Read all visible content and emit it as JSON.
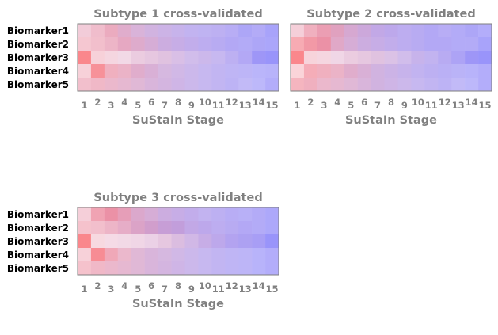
{
  "chart_data": [
    {
      "type": "heatmap",
      "title": "Subtype 1 cross-validated",
      "xlabel": "SuStaIn Stage",
      "x_categories": [
        "1",
        "2",
        "3",
        "4",
        "5",
        "6",
        "7",
        "8",
        "9",
        "10",
        "11",
        "12",
        "13",
        "14",
        "15"
      ],
      "y_categories": [
        "Biomarker1",
        "Biomarker2",
        "Biomarker3",
        "Biomarker4",
        "Biomarker5"
      ],
      "value_encoding": "each cell is [red_probability, blue_probability] blended on white",
      "values": [
        [
          [
            0.15,
            0.05
          ],
          [
            0.2,
            0.06
          ],
          [
            0.25,
            0.08
          ],
          [
            0.2,
            0.12
          ],
          [
            0.15,
            0.15
          ],
          [
            0.12,
            0.18
          ],
          [
            0.1,
            0.2
          ],
          [
            0.08,
            0.22
          ],
          [
            0.06,
            0.24
          ],
          [
            0.05,
            0.25
          ],
          [
            0.05,
            0.26
          ],
          [
            0.04,
            0.28
          ],
          [
            0.03,
            0.32
          ],
          [
            0.03,
            0.3
          ],
          [
            0.02,
            0.34
          ]
        ],
        [
          [
            0.18,
            0.04
          ],
          [
            0.2,
            0.05
          ],
          [
            0.22,
            0.07
          ],
          [
            0.24,
            0.1
          ],
          [
            0.2,
            0.13
          ],
          [
            0.16,
            0.16
          ],
          [
            0.12,
            0.2
          ],
          [
            0.1,
            0.22
          ],
          [
            0.08,
            0.24
          ],
          [
            0.06,
            0.26
          ],
          [
            0.05,
            0.28
          ],
          [
            0.04,
            0.3
          ],
          [
            0.03,
            0.3
          ],
          [
            0.03,
            0.32
          ],
          [
            0.02,
            0.33
          ]
        ],
        [
          [
            0.45,
            0.02
          ],
          [
            0.15,
            0.03
          ],
          [
            0.12,
            0.04
          ],
          [
            0.1,
            0.05
          ],
          [
            0.12,
            0.08
          ],
          [
            0.12,
            0.1
          ],
          [
            0.12,
            0.12
          ],
          [
            0.1,
            0.15
          ],
          [
            0.08,
            0.18
          ],
          [
            0.08,
            0.2
          ],
          [
            0.06,
            0.22
          ],
          [
            0.05,
            0.26
          ],
          [
            0.04,
            0.3
          ],
          [
            0.03,
            0.38
          ],
          [
            0.02,
            0.4
          ]
        ],
        [
          [
            0.15,
            0.03
          ],
          [
            0.4,
            0.03
          ],
          [
            0.25,
            0.06
          ],
          [
            0.22,
            0.08
          ],
          [
            0.2,
            0.12
          ],
          [
            0.16,
            0.15
          ],
          [
            0.12,
            0.16
          ],
          [
            0.1,
            0.18
          ],
          [
            0.08,
            0.2
          ],
          [
            0.06,
            0.22
          ],
          [
            0.05,
            0.24
          ],
          [
            0.04,
            0.25
          ],
          [
            0.03,
            0.26
          ],
          [
            0.02,
            0.27
          ],
          [
            0.02,
            0.28
          ]
        ],
        [
          [
            0.2,
            0.05
          ],
          [
            0.22,
            0.06
          ],
          [
            0.2,
            0.08
          ],
          [
            0.18,
            0.1
          ],
          [
            0.16,
            0.12
          ],
          [
            0.14,
            0.15
          ],
          [
            0.12,
            0.17
          ],
          [
            0.1,
            0.19
          ],
          [
            0.08,
            0.2
          ],
          [
            0.06,
            0.22
          ],
          [
            0.05,
            0.24
          ],
          [
            0.04,
            0.26
          ],
          [
            0.03,
            0.24
          ],
          [
            0.02,
            0.26
          ],
          [
            0.02,
            0.3
          ]
        ]
      ]
    },
    {
      "type": "heatmap",
      "title": "Subtype 2 cross-validated",
      "xlabel": "SuStaIn Stage",
      "x_categories": [
        "1",
        "2",
        "3",
        "4",
        "5",
        "6",
        "7",
        "8",
        "9",
        "10",
        "11",
        "12",
        "13",
        "14",
        "15"
      ],
      "y_categories": [
        "Biomarker1",
        "Biomarker2",
        "Biomarker3",
        "Biomarker4",
        "Biomarker5"
      ],
      "value_encoding": "each cell is [red_probability, blue_probability] blended on white",
      "values": [
        [
          [
            0.15,
            0.04
          ],
          [
            0.25,
            0.06
          ],
          [
            0.3,
            0.08
          ],
          [
            0.25,
            0.12
          ],
          [
            0.18,
            0.16
          ],
          [
            0.14,
            0.2
          ],
          [
            0.1,
            0.24
          ],
          [
            0.08,
            0.26
          ],
          [
            0.06,
            0.26
          ],
          [
            0.05,
            0.28
          ],
          [
            0.04,
            0.3
          ],
          [
            0.04,
            0.28
          ],
          [
            0.03,
            0.3
          ],
          [
            0.03,
            0.32
          ],
          [
            0.02,
            0.3
          ]
        ],
        [
          [
            0.3,
            0.03
          ],
          [
            0.35,
            0.05
          ],
          [
            0.35,
            0.08
          ],
          [
            0.22,
            0.12
          ],
          [
            0.16,
            0.16
          ],
          [
            0.12,
            0.2
          ],
          [
            0.1,
            0.22
          ],
          [
            0.08,
            0.24
          ],
          [
            0.06,
            0.26
          ],
          [
            0.05,
            0.28
          ],
          [
            0.04,
            0.3
          ],
          [
            0.04,
            0.3
          ],
          [
            0.03,
            0.3
          ],
          [
            0.03,
            0.3
          ],
          [
            0.02,
            0.34
          ]
        ],
        [
          [
            0.45,
            0.02
          ],
          [
            0.14,
            0.03
          ],
          [
            0.12,
            0.04
          ],
          [
            0.1,
            0.06
          ],
          [
            0.12,
            0.08
          ],
          [
            0.12,
            0.1
          ],
          [
            0.12,
            0.12
          ],
          [
            0.1,
            0.14
          ],
          [
            0.08,
            0.18
          ],
          [
            0.08,
            0.22
          ],
          [
            0.06,
            0.24
          ],
          [
            0.05,
            0.28
          ],
          [
            0.04,
            0.32
          ],
          [
            0.03,
            0.38
          ],
          [
            0.02,
            0.4
          ]
        ],
        [
          [
            0.15,
            0.02
          ],
          [
            0.28,
            0.04
          ],
          [
            0.25,
            0.06
          ],
          [
            0.22,
            0.08
          ],
          [
            0.2,
            0.12
          ],
          [
            0.16,
            0.15
          ],
          [
            0.12,
            0.18
          ],
          [
            0.1,
            0.2
          ],
          [
            0.08,
            0.22
          ],
          [
            0.06,
            0.24
          ],
          [
            0.05,
            0.26
          ],
          [
            0.04,
            0.27
          ],
          [
            0.03,
            0.27
          ],
          [
            0.02,
            0.28
          ],
          [
            0.02,
            0.3
          ]
        ],
        [
          [
            0.25,
            0.04
          ],
          [
            0.25,
            0.06
          ],
          [
            0.2,
            0.08
          ],
          [
            0.18,
            0.1
          ],
          [
            0.16,
            0.12
          ],
          [
            0.14,
            0.15
          ],
          [
            0.12,
            0.18
          ],
          [
            0.1,
            0.19
          ],
          [
            0.08,
            0.2
          ],
          [
            0.06,
            0.22
          ],
          [
            0.05,
            0.24
          ],
          [
            0.04,
            0.26
          ],
          [
            0.03,
            0.24
          ],
          [
            0.02,
            0.26
          ],
          [
            0.02,
            0.3
          ]
        ]
      ]
    },
    {
      "type": "heatmap",
      "title": "Subtype 3 cross-validated",
      "xlabel": "SuStaIn Stage",
      "x_categories": [
        "1",
        "2",
        "3",
        "4",
        "5",
        "6",
        "7",
        "8",
        "9",
        "10",
        "11",
        "12",
        "13",
        "14",
        "15"
      ],
      "y_categories": [
        "Biomarker1",
        "Biomarker2",
        "Biomarker3",
        "Biomarker4",
        "Biomarker5"
      ],
      "value_encoding": "each cell is [red_probability, blue_probability] blended on white",
      "values": [
        [
          [
            0.15,
            0.04
          ],
          [
            0.3,
            0.06
          ],
          [
            0.35,
            0.08
          ],
          [
            0.28,
            0.1
          ],
          [
            0.2,
            0.14
          ],
          [
            0.16,
            0.16
          ],
          [
            0.12,
            0.2
          ],
          [
            0.1,
            0.22
          ],
          [
            0.08,
            0.24
          ],
          [
            0.06,
            0.24
          ],
          [
            0.05,
            0.26
          ],
          [
            0.04,
            0.28
          ],
          [
            0.03,
            0.28
          ],
          [
            0.03,
            0.3
          ],
          [
            0.02,
            0.32
          ]
        ],
        [
          [
            0.2,
            0.04
          ],
          [
            0.2,
            0.05
          ],
          [
            0.22,
            0.07
          ],
          [
            0.22,
            0.1
          ],
          [
            0.22,
            0.14
          ],
          [
            0.2,
            0.18
          ],
          [
            0.16,
            0.22
          ],
          [
            0.14,
            0.24
          ],
          [
            0.1,
            0.24
          ],
          [
            0.08,
            0.26
          ],
          [
            0.06,
            0.26
          ],
          [
            0.05,
            0.28
          ],
          [
            0.04,
            0.3
          ],
          [
            0.03,
            0.3
          ],
          [
            0.02,
            0.32
          ]
        ],
        [
          [
            0.45,
            0.02
          ],
          [
            0.12,
            0.03
          ],
          [
            0.1,
            0.04
          ],
          [
            0.1,
            0.05
          ],
          [
            0.1,
            0.06
          ],
          [
            0.1,
            0.08
          ],
          [
            0.12,
            0.1
          ],
          [
            0.12,
            0.14
          ],
          [
            0.1,
            0.18
          ],
          [
            0.1,
            0.22
          ],
          [
            0.08,
            0.26
          ],
          [
            0.06,
            0.3
          ],
          [
            0.05,
            0.32
          ],
          [
            0.04,
            0.34
          ],
          [
            0.02,
            0.4
          ]
        ],
        [
          [
            0.15,
            0.03
          ],
          [
            0.42,
            0.03
          ],
          [
            0.28,
            0.06
          ],
          [
            0.2,
            0.08
          ],
          [
            0.16,
            0.12
          ],
          [
            0.14,
            0.15
          ],
          [
            0.12,
            0.16
          ],
          [
            0.1,
            0.18
          ],
          [
            0.08,
            0.2
          ],
          [
            0.06,
            0.22
          ],
          [
            0.05,
            0.24
          ],
          [
            0.04,
            0.25
          ],
          [
            0.03,
            0.26
          ],
          [
            0.02,
            0.28
          ],
          [
            0.02,
            0.3
          ]
        ],
        [
          [
            0.2,
            0.04
          ],
          [
            0.22,
            0.06
          ],
          [
            0.2,
            0.08
          ],
          [
            0.18,
            0.1
          ],
          [
            0.16,
            0.12
          ],
          [
            0.14,
            0.15
          ],
          [
            0.12,
            0.17
          ],
          [
            0.1,
            0.19
          ],
          [
            0.08,
            0.2
          ],
          [
            0.06,
            0.22
          ],
          [
            0.05,
            0.24
          ],
          [
            0.04,
            0.25
          ],
          [
            0.03,
            0.26
          ],
          [
            0.02,
            0.28
          ],
          [
            0.02,
            0.3
          ]
        ]
      ]
    }
  ],
  "colors": {
    "red": "#ff0000",
    "blue": "#0000ff",
    "magenta": "#ff00ff",
    "frame": "#7f7f7f",
    "text_gray": "#808080"
  }
}
